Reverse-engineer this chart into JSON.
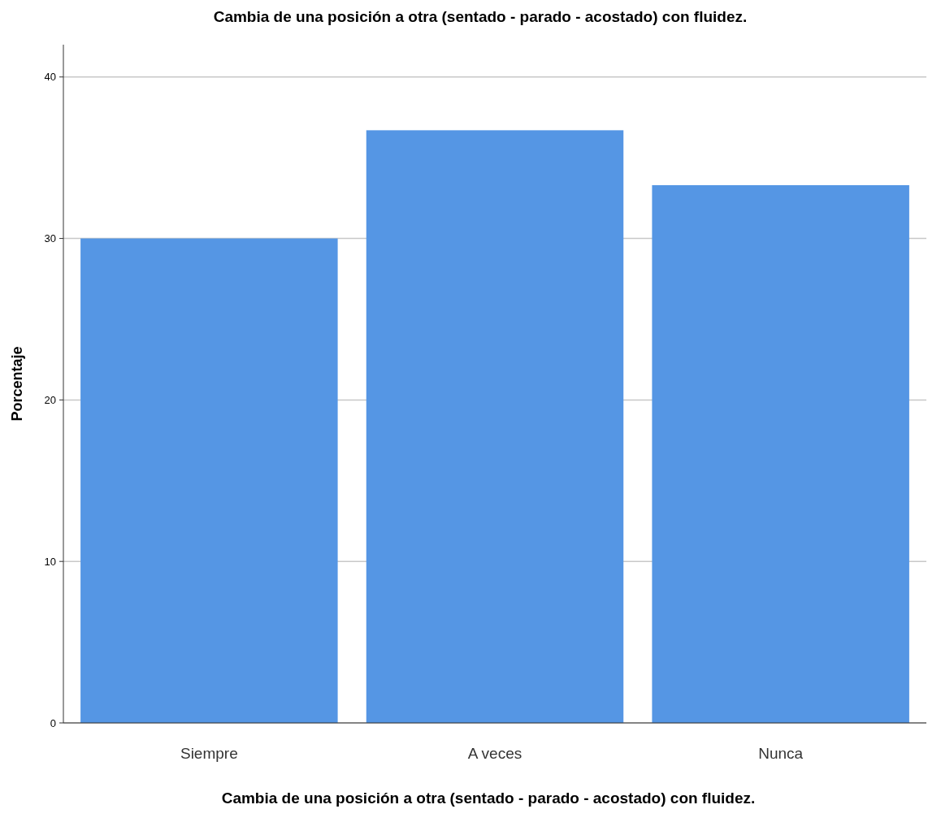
{
  "chart_data": {
    "type": "bar",
    "title": "Cambia de una posición a otra (sentado - parado - acostado) con fluidez.",
    "xlabel": "Cambia de una posición a otra (sentado - parado - acostado) con fluidez.",
    "ylabel": "Porcentaje",
    "categories": [
      "Siempre",
      "A veces",
      "Nunca"
    ],
    "values": [
      30,
      36.7,
      33.3
    ],
    "color": "#5596e4",
    "ylim": [
      0,
      42
    ],
    "yticks": [
      0,
      10,
      20,
      30,
      40
    ],
    "grid": "y"
  }
}
